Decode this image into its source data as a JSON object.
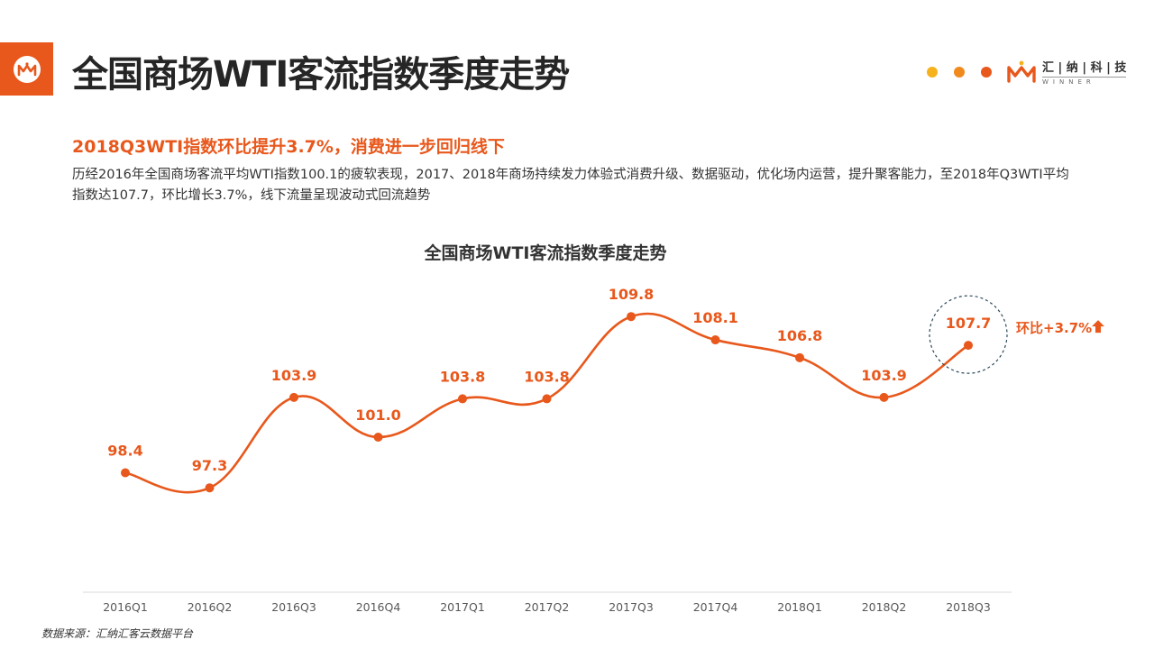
{
  "header": {
    "title": "全国商场WTI客流指数季度走势",
    "brand_name_cn": "汇 | 纳 | 科 | 技",
    "brand_name_en": "WINNER",
    "dot_colors": [
      "#F5B21C",
      "#F08A1C",
      "#E8581C"
    ]
  },
  "subtitle": "2018Q3WTI指数环比提升3.7%，消费进一步回归线下",
  "description": "历经2016年全国商场客流平均WTI指数100.1的疲软表现，2017、2018年商场持续发力体验式消费升级、数据驱动，优化场内运营，提升聚客能力，至2018年Q3WTI平均指数达107.7，环比增长3.7%，线下流量呈现波动式回流趋势",
  "chart_data": {
    "type": "line",
    "title": "全国商场WTI客流指数季度走势",
    "categories": [
      "2016Q1",
      "2016Q2",
      "2016Q3",
      "2016Q4",
      "2017Q1",
      "2017Q2",
      "2017Q3",
      "2017Q4",
      "2018Q1",
      "2018Q2",
      "2018Q3"
    ],
    "values": [
      98.4,
      97.3,
      103.9,
      101.0,
      103.8,
      103.8,
      109.8,
      108.1,
      106.8,
      103.9,
      107.7
    ],
    "value_labels": [
      "98.4",
      "97.3",
      "103.9",
      "101.0",
      "103.8",
      "103.8",
      "109.8",
      "108.1",
      "106.8",
      "103.9",
      "107.7"
    ],
    "xlabel": "",
    "ylabel": "",
    "grid": false,
    "color": "#E8581C",
    "annotation": {
      "target": "2018Q3",
      "text": "环比+3.7%",
      "style": "dashed-circle",
      "circle_color": "#2C4A5A"
    }
  },
  "source": "数据来源：汇纳汇客云数据平台"
}
